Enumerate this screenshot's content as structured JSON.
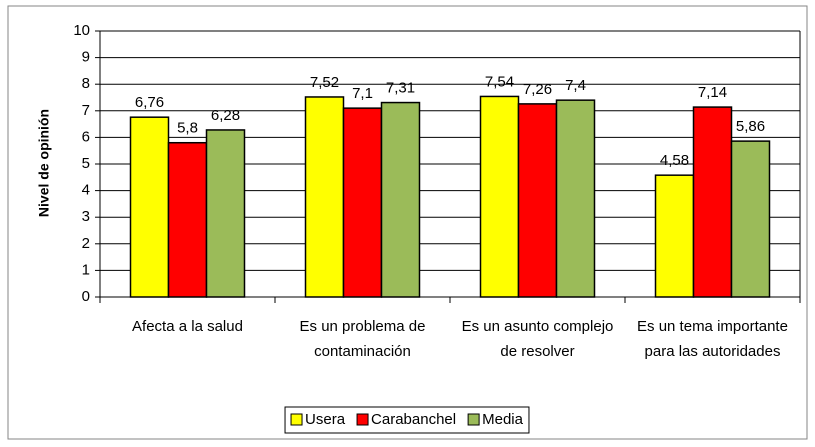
{
  "chart_data": {
    "type": "bar",
    "y_label": "Nivel de opinión",
    "categories": [
      "Afecta a la salud",
      "Es un problema de contaminación",
      "Es un asunto complejo de resolver",
      "Es un tema importante para las autoridades"
    ],
    "series": [
      {
        "name": "Usera",
        "color": "#ffff00",
        "values": [
          6.76,
          7.52,
          7.54,
          4.58
        ],
        "value_labels": [
          "6,76",
          "7,52",
          "7,54",
          "4,58"
        ]
      },
      {
        "name": "Carabanchel",
        "color": "#ff0000",
        "values": [
          5.8,
          7.1,
          7.26,
          7.14
        ],
        "value_labels": [
          "5,8",
          "7,1",
          "7,26",
          "7,14"
        ]
      },
      {
        "name": "Media",
        "color": "#9bbb59",
        "values": [
          6.28,
          7.31,
          7.4,
          5.86
        ],
        "value_labels": [
          "6,28",
          "7,31",
          "7,4",
          "5,86"
        ]
      }
    ],
    "ylim": [
      0,
      10
    ],
    "yticks": [
      0,
      1,
      2,
      3,
      4,
      5,
      6,
      7,
      8,
      9,
      10
    ],
    "grid": true,
    "legend": "bottom"
  }
}
